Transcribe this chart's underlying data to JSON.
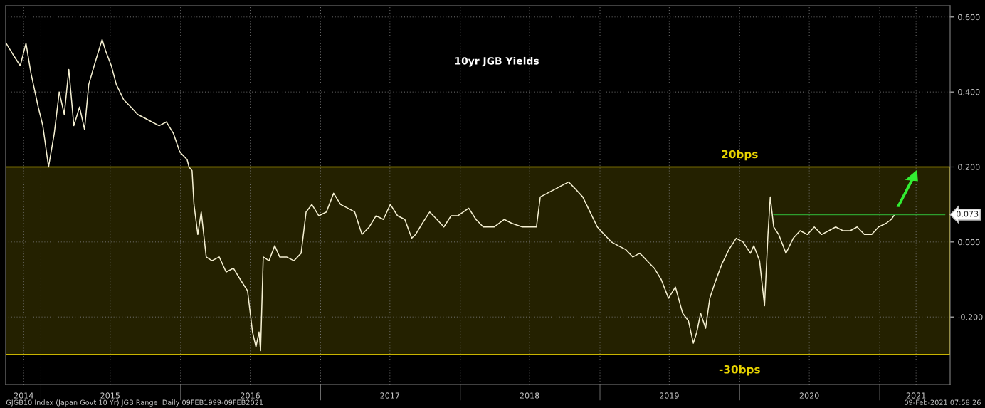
{
  "chart_data": {
    "type": "line",
    "title": "10yr JGB Yields",
    "x": [
      "2014-10-02",
      "2014-10-20",
      "2014-11-08",
      "2014-11-23",
      "2014-12-06",
      "2014-12-25",
      "2015-01-06",
      "2015-01-21",
      "2015-02-05",
      "2015-02-18",
      "2015-03-03",
      "2015-03-15",
      "2015-03-28",
      "2015-04-12",
      "2015-04-25",
      "2015-05-06",
      "2015-05-23",
      "2015-06-10",
      "2015-06-19",
      "2015-07-04",
      "2015-07-17",
      "2015-08-05",
      "2015-08-24",
      "2015-09-11",
      "2015-09-30",
      "2015-10-18",
      "2015-11-06",
      "2015-11-25",
      "2015-12-13",
      "2015-12-30",
      "2016-01-18",
      "2016-01-23",
      "2016-01-31",
      "2016-02-05",
      "2016-02-15",
      "2016-02-24",
      "2016-03-08",
      "2016-03-23",
      "2016-04-11",
      "2016-04-29",
      "2016-05-18",
      "2016-06-05",
      "2016-06-24",
      "2016-07-07",
      "2016-07-16",
      "2016-07-24",
      "2016-07-28",
      "2016-08-04",
      "2016-08-19",
      "2016-09-03",
      "2016-09-16",
      "2016-10-04",
      "2016-10-23",
      "2016-11-11",
      "2016-11-24",
      "2016-12-09",
      "2016-12-27",
      "2017-01-16",
      "2017-02-04",
      "2017-02-22",
      "2017-03-13",
      "2017-03-31",
      "2017-04-19",
      "2017-05-08",
      "2017-05-26",
      "2017-06-14",
      "2017-07-02",
      "2017-07-21",
      "2017-08-09",
      "2017-08-27",
      "2017-09-06",
      "2017-09-24",
      "2017-10-13",
      "2017-11-01",
      "2017-11-19",
      "2017-12-08",
      "2017-12-26",
      "2018-01-23",
      "2018-02-11",
      "2018-03-02",
      "2018-03-30",
      "2018-04-26",
      "2018-05-15",
      "2018-06-12",
      "2018-07-10",
      "2018-07-19",
      "2018-07-29",
      "2018-08-16",
      "2018-09-04",
      "2018-09-22",
      "2018-10-11",
      "2018-10-30",
      "2018-11-17",
      "2018-12-06",
      "2018-12-25",
      "2019-01-12",
      "2019-01-31",
      "2019-02-18",
      "2019-03-09",
      "2019-03-28",
      "2019-04-15",
      "2019-05-04",
      "2019-05-23",
      "2019-06-10",
      "2019-06-29",
      "2019-07-17",
      "2019-08-05",
      "2019-08-20",
      "2019-09-02",
      "2019-09-11",
      "2019-09-21",
      "2019-10-04",
      "2019-10-15",
      "2019-10-28",
      "2019-11-15",
      "2019-12-04",
      "2019-12-23",
      "2020-01-10",
      "2020-01-29",
      "2020-02-07",
      "2020-02-22",
      "2020-03-06",
      "2020-03-15",
      "2020-03-21",
      "2020-03-30",
      "2020-04-12",
      "2020-05-01",
      "2020-05-20",
      "2020-06-07",
      "2020-06-26",
      "2020-07-14",
      "2020-08-02",
      "2020-08-21",
      "2020-09-08",
      "2020-09-27",
      "2020-10-16",
      "2020-11-03",
      "2020-11-22",
      "2020-12-11",
      "2020-12-29",
      "2021-01-18",
      "2021-01-31",
      "2021-02-09"
    ],
    "series": [
      {
        "color": "#f5f0d2",
        "values": [
          0.53,
          0.5,
          0.47,
          0.53,
          0.45,
          0.36,
          0.31,
          0.2,
          0.29,
          0.4,
          0.34,
          0.46,
          0.31,
          0.36,
          0.3,
          0.42,
          0.48,
          0.54,
          0.51,
          0.47,
          0.42,
          0.38,
          0.36,
          0.34,
          0.33,
          0.32,
          0.31,
          0.32,
          0.29,
          0.24,
          0.22,
          0.2,
          0.19,
          0.1,
          0.02,
          0.08,
          -0.04,
          -0.05,
          -0.04,
          -0.08,
          -0.07,
          -0.1,
          -0.13,
          -0.24,
          -0.28,
          -0.24,
          -0.29,
          -0.04,
          -0.05,
          -0.01,
          -0.04,
          -0.04,
          -0.05,
          -0.03,
          0.08,
          0.1,
          0.07,
          0.08,
          0.13,
          0.1,
          0.09,
          0.08,
          0.02,
          0.04,
          0.07,
          0.06,
          0.1,
          0.07,
          0.06,
          0.01,
          0.02,
          0.05,
          0.08,
          0.06,
          0.04,
          0.07,
          0.07,
          0.09,
          0.06,
          0.04,
          0.04,
          0.06,
          0.05,
          0.04,
          0.04,
          0.04,
          0.12,
          0.13,
          0.14,
          0.15,
          0.16,
          0.14,
          0.12,
          0.08,
          0.04,
          0.02,
          0.0,
          -0.01,
          -0.02,
          -0.04,
          -0.03,
          -0.05,
          -0.07,
          -0.1,
          -0.15,
          -0.12,
          -0.19,
          -0.21,
          -0.27,
          -0.24,
          -0.19,
          -0.23,
          -0.15,
          -0.11,
          -0.06,
          -0.02,
          0.01,
          0.0,
          -0.03,
          -0.01,
          -0.05,
          -0.17,
          0.02,
          0.12,
          0.04,
          0.02,
          -0.03,
          0.01,
          0.03,
          0.02,
          0.04,
          0.02,
          0.03,
          0.04,
          0.03,
          0.03,
          0.04,
          0.02,
          0.02,
          0.04,
          0.05,
          0.06,
          0.073
        ]
      },
      {
        "color": "#2e9e2e",
        "x": [
          "2020-03-30",
          "2021-06-20"
        ],
        "values": [
          0.073,
          0.073
        ]
      }
    ],
    "bands": [
      {
        "axis": "y",
        "from": -0.3,
        "to": 0.2,
        "color": "#c8b400"
      }
    ],
    "annotations": [
      {
        "text": "20bps",
        "x": "2020-01-01",
        "y": 0.2
      },
      {
        "text": "-30bps",
        "x": "2020-01-01",
        "y": -0.3
      },
      {
        "text": "0.073",
        "x": "2021-07-04",
        "y": 0.073
      },
      "GJGB10 Index (Japan Govt 10 Yr) JGB Range  Daily 09FEB1999-09FEB2021",
      "09-Feb-2021 07:58:26"
    ],
    "xlim": [
      "2014-10-01",
      "2021-07-04"
    ],
    "xticks": [
      {
        "value": "2014-11-17",
        "label": "2014"
      },
      {
        "value": "2015-01-01",
        "label": null
      },
      {
        "value": "2015-07-01",
        "label": "2015"
      },
      {
        "value": "2016-01-01",
        "label": null
      },
      {
        "value": "2016-07-01",
        "label": "2016"
      },
      {
        "value": "2017-01-01",
        "label": null
      },
      {
        "value": "2017-07-01",
        "label": "2017"
      },
      {
        "value": "2018-01-01",
        "label": null
      },
      {
        "value": "2018-07-01",
        "label": "2018"
      },
      {
        "value": "2019-01-01",
        "label": null
      },
      {
        "value": "2019-07-01",
        "label": "2019"
      },
      {
        "value": "2020-01-01",
        "label": null
      },
      {
        "value": "2020-07-01",
        "label": "2020"
      },
      {
        "value": "2021-01-01",
        "label": null
      },
      {
        "value": "2021-04-06",
        "label": "2021"
      }
    ],
    "ylim": [
      -0.38,
      0.63
    ],
    "yticks": [
      {
        "value": -0.2,
        "label": "-0.200"
      },
      {
        "value": 0,
        "label": "0.000"
      },
      {
        "value": 0.2,
        "label": "0.200"
      },
      {
        "value": 0.4,
        "label": "0.400"
      },
      {
        "value": 0.6,
        "label": "0.600"
      }
    ],
    "grid": true,
    "marker": "none",
    "line_style": "solid"
  }
}
